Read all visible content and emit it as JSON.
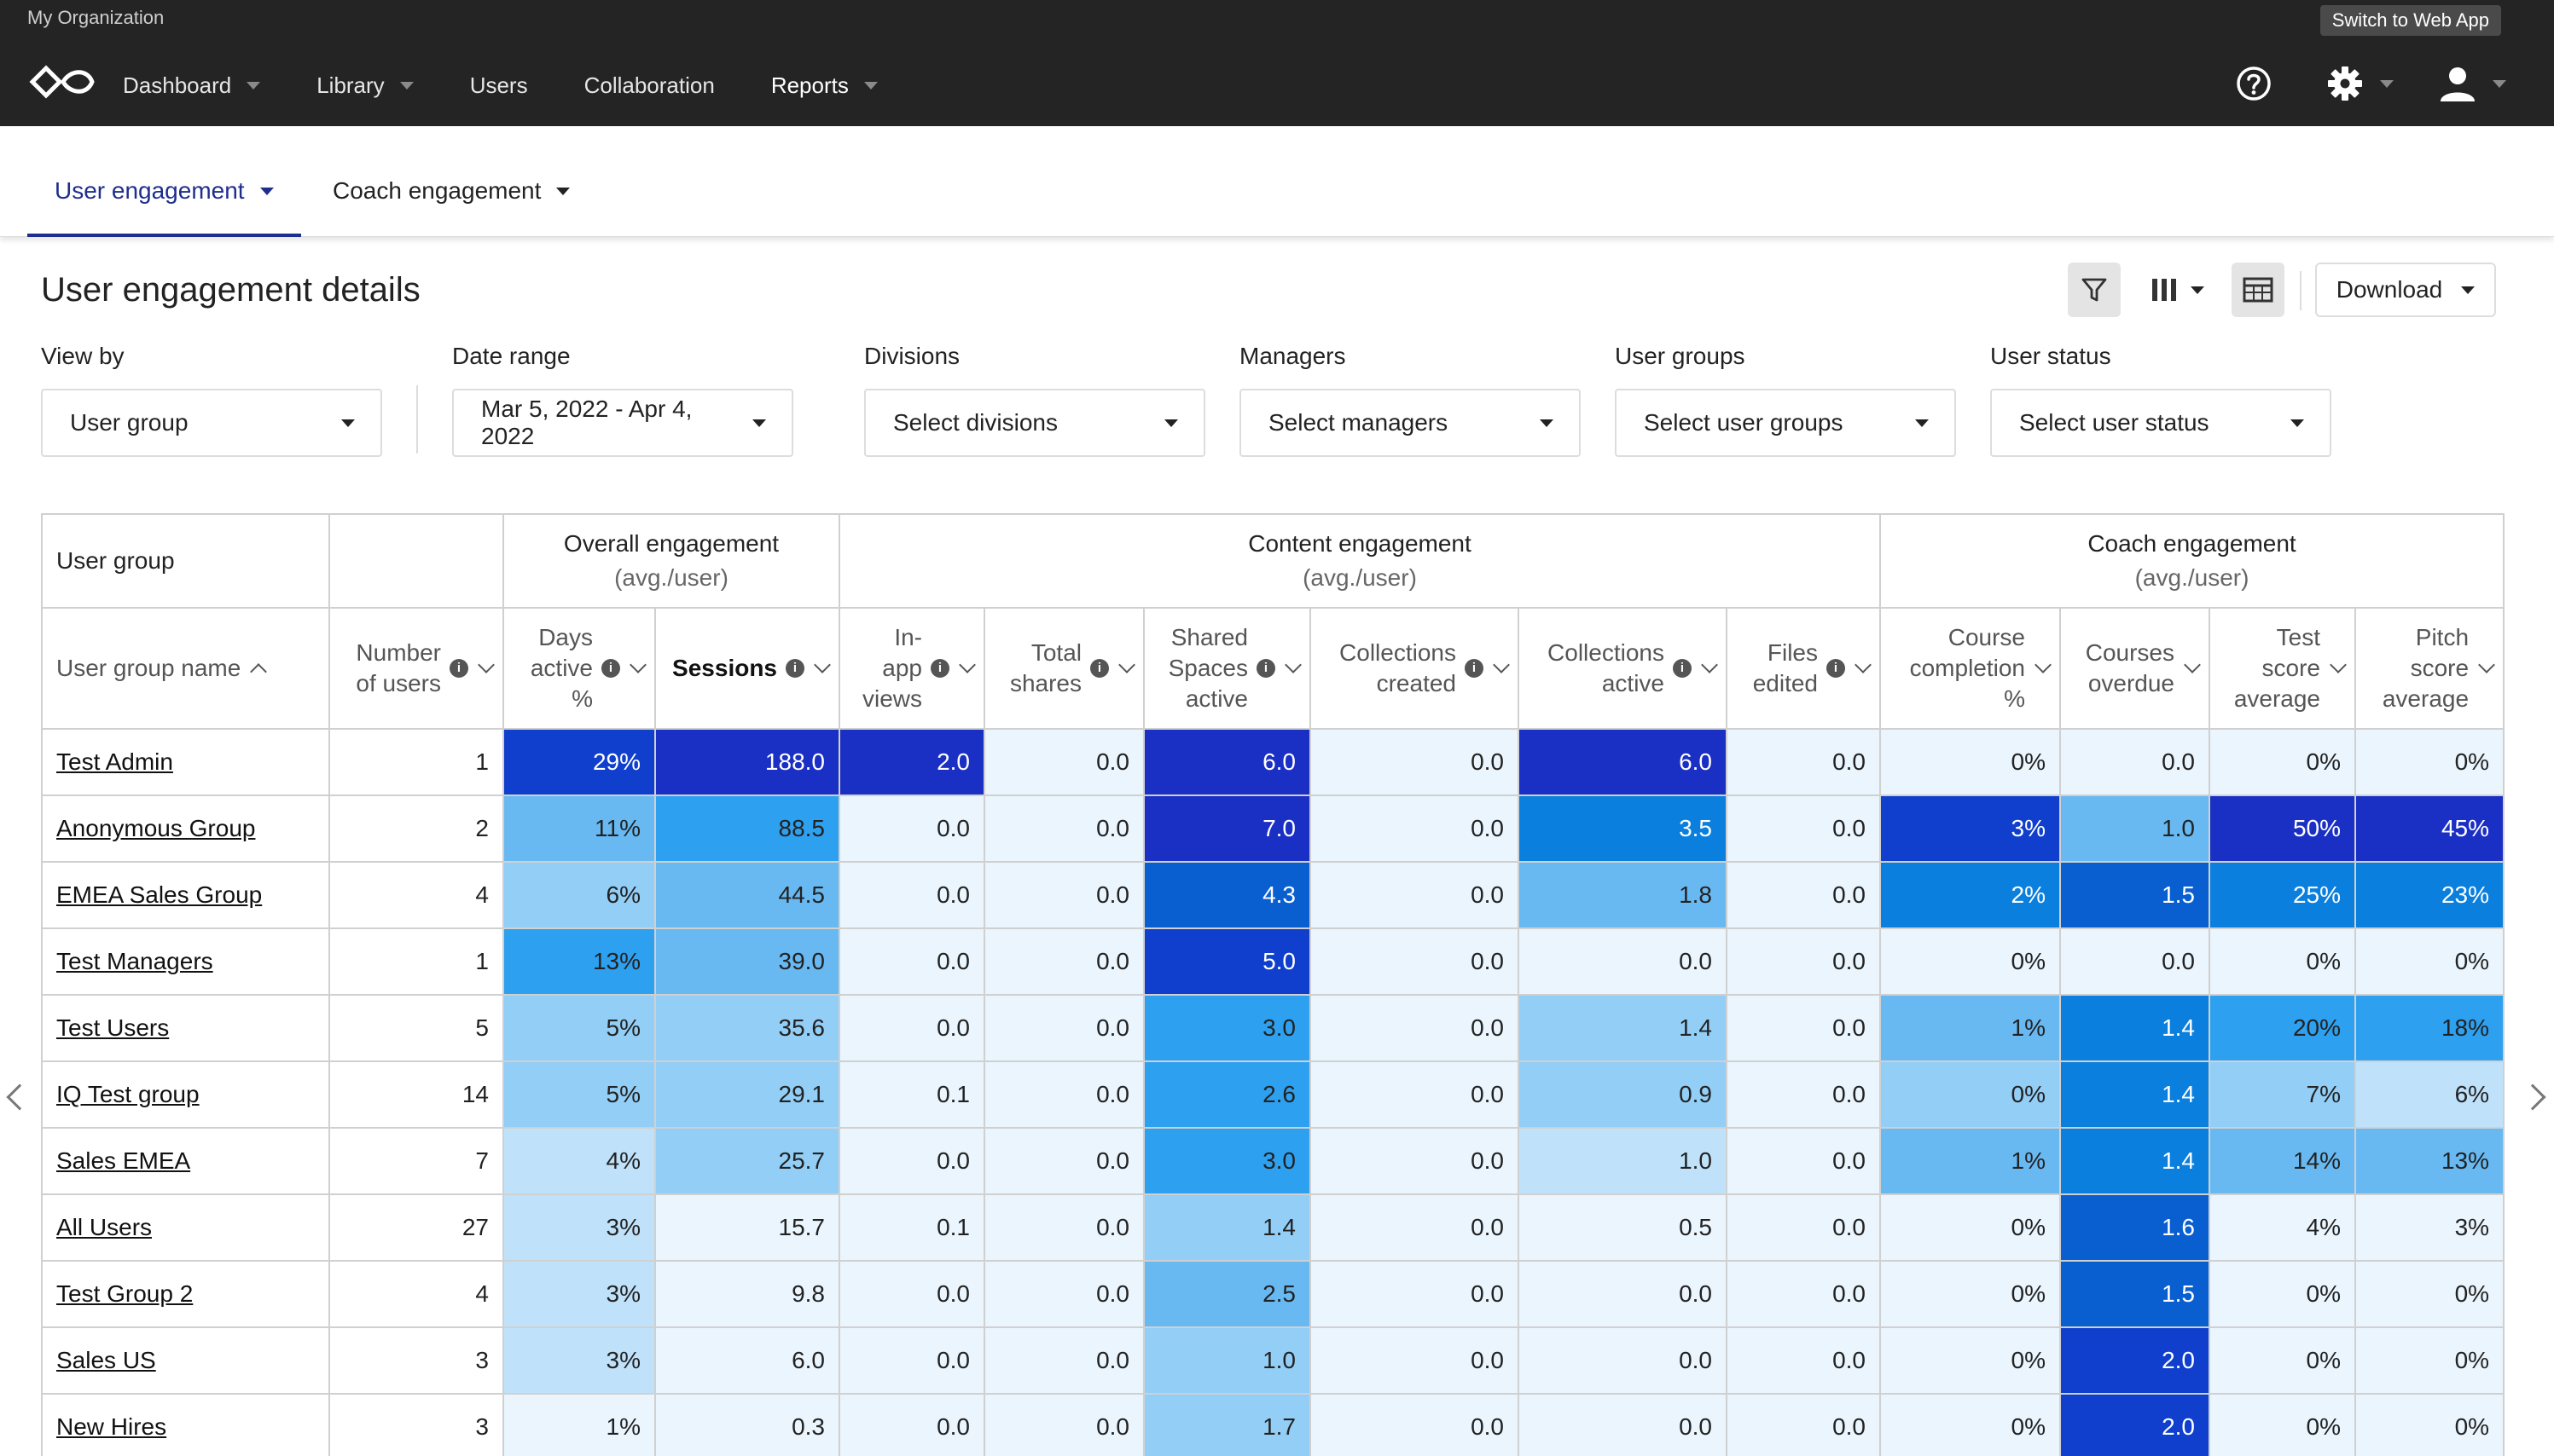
{
  "org_name": "My Organization",
  "switch_button": "Switch to Web App",
  "nav": [
    {
      "label": "Dashboard",
      "dropdown": true
    },
    {
      "label": "Library",
      "dropdown": true
    },
    {
      "label": "Users",
      "dropdown": false
    },
    {
      "label": "Collaboration",
      "dropdown": false
    },
    {
      "label": "Reports",
      "dropdown": true
    }
  ],
  "tabs": [
    "User engagement",
    "Coach engagement"
  ],
  "page_title": "User engagement details",
  "download_label": "Download",
  "filters": [
    {
      "label": "View by",
      "value": "User group"
    },
    {
      "label": "Date range",
      "value": "Mar 5, 2022 - Apr 4, 2022"
    },
    {
      "label": "Divisions",
      "value": "Select divisions"
    },
    {
      "label": "Managers",
      "value": "Select managers"
    },
    {
      "label": "User groups",
      "value": "Select user groups"
    },
    {
      "label": "User status",
      "value": "Select user status"
    }
  ],
  "table": {
    "groups": [
      {
        "title": "User group",
        "sub": ""
      },
      {
        "title": "",
        "sub": ""
      },
      {
        "title": "Overall engagement",
        "sub": "(avg./user)"
      },
      {
        "title": "Content engagement",
        "sub": "(avg./user)"
      },
      {
        "title": "Coach engagement",
        "sub": "(avg./user)"
      }
    ],
    "columns": [
      {
        "lines": [
          "User group name"
        ]
      },
      {
        "lines": [
          "Number",
          "of users"
        ]
      },
      {
        "lines": [
          "Days",
          "active",
          "%"
        ]
      },
      {
        "lines": [
          "Sessions"
        ]
      },
      {
        "lines": [
          "In-",
          "app",
          "views"
        ]
      },
      {
        "lines": [
          "Total",
          "shares"
        ]
      },
      {
        "lines": [
          "Shared",
          "Spaces",
          "active"
        ]
      },
      {
        "lines": [
          "Collections",
          "created"
        ]
      },
      {
        "lines": [
          "Collections",
          "active"
        ]
      },
      {
        "lines": [
          "Files",
          "edited"
        ]
      },
      {
        "lines": [
          "Course",
          "completion",
          "%"
        ]
      },
      {
        "lines": [
          "Courses",
          "overdue"
        ]
      },
      {
        "lines": [
          "Test",
          "score",
          "average"
        ]
      },
      {
        "lines": [
          "Pitch",
          "score",
          "average"
        ]
      }
    ],
    "info_glyph": "i",
    "rows": [
      {
        "name": "Test Admin",
        "cells": [
          "1",
          "29%",
          "188.0",
          "2.0",
          "0.0",
          "6.0",
          "0.0",
          "6.0",
          "0.0",
          "0%",
          "0.0",
          "0%",
          "0%"
        ]
      },
      {
        "name": "Anonymous Group",
        "cells": [
          "2",
          "11%",
          "88.5",
          "0.0",
          "0.0",
          "7.0",
          "0.0",
          "3.5",
          "0.0",
          "3%",
          "1.0",
          "50%",
          "45%"
        ]
      },
      {
        "name": "EMEA Sales Group",
        "cells": [
          "4",
          "6%",
          "44.5",
          "0.0",
          "0.0",
          "4.3",
          "0.0",
          "1.8",
          "0.0",
          "2%",
          "1.5",
          "25%",
          "23%"
        ]
      },
      {
        "name": "Test Managers",
        "cells": [
          "1",
          "13%",
          "39.0",
          "0.0",
          "0.0",
          "5.0",
          "0.0",
          "0.0",
          "0.0",
          "0%",
          "0.0",
          "0%",
          "0%"
        ]
      },
      {
        "name": "Test Users",
        "cells": [
          "5",
          "5%",
          "35.6",
          "0.0",
          "0.0",
          "3.0",
          "0.0",
          "1.4",
          "0.0",
          "1%",
          "1.4",
          "20%",
          "18%"
        ]
      },
      {
        "name": "IQ Test group",
        "cells": [
          "14",
          "5%",
          "29.1",
          "0.1",
          "0.0",
          "2.6",
          "0.0",
          "0.9",
          "0.0",
          "0%",
          "1.4",
          "7%",
          "6%"
        ]
      },
      {
        "name": "Sales EMEA",
        "cells": [
          "7",
          "4%",
          "25.7",
          "0.0",
          "0.0",
          "3.0",
          "0.0",
          "1.0",
          "0.0",
          "1%",
          "1.4",
          "14%",
          "13%"
        ]
      },
      {
        "name": "All Users",
        "cells": [
          "27",
          "3%",
          "15.7",
          "0.1",
          "0.0",
          "1.4",
          "0.0",
          "0.5",
          "0.0",
          "0%",
          "1.6",
          "4%",
          "3%"
        ]
      },
      {
        "name": "Test Group 2",
        "cells": [
          "4",
          "3%",
          "9.8",
          "0.0",
          "0.0",
          "2.5",
          "0.0",
          "0.0",
          "0.0",
          "0%",
          "1.5",
          "0%",
          "0%"
        ]
      },
      {
        "name": "Sales US",
        "cells": [
          "3",
          "3%",
          "6.0",
          "0.0",
          "0.0",
          "1.0",
          "0.0",
          "0.0",
          "0.0",
          "0%",
          "2.0",
          "0%",
          "0%"
        ]
      },
      {
        "name": "New Hires",
        "cells": [
          "3",
          "1%",
          "0.3",
          "0.0",
          "0.0",
          "1.7",
          "0.0",
          "0.0",
          "0.0",
          "0%",
          "2.0",
          "0%",
          "0%"
        ]
      }
    ],
    "heat_colors": {
      "0": "#eaf5fd",
      "1": "#bfe2fa",
      "2": "#93cef6",
      "3": "#68b9f2",
      "4": "#2ea0f0",
      "5": "#0a7fdd",
      "6": "#0a5fd0",
      "7": "#0f3fcc",
      "8": "#1a2fc4"
    },
    "heat_levels": [
      [
        null,
        7,
        8,
        8,
        0,
        8,
        0,
        8,
        0,
        0,
        0,
        0,
        0
      ],
      [
        null,
        3,
        4,
        0,
        0,
        8,
        0,
        5,
        0,
        7,
        3,
        8,
        8
      ],
      [
        null,
        2,
        3,
        0,
        0,
        6,
        0,
        3,
        0,
        5,
        6,
        5,
        5
      ],
      [
        null,
        4,
        3,
        0,
        0,
        7,
        0,
        0,
        0,
        0,
        0,
        0,
        0
      ],
      [
        null,
        2,
        2,
        0,
        0,
        4,
        0,
        2,
        0,
        3,
        5,
        4,
        4
      ],
      [
        null,
        2,
        2,
        0,
        0,
        4,
        0,
        2,
        0,
        2,
        5,
        2,
        1
      ],
      [
        null,
        1,
        2,
        0,
        0,
        4,
        0,
        1,
        0,
        3,
        5,
        3,
        3
      ],
      [
        null,
        1,
        0,
        0,
        0,
        2,
        0,
        0,
        0,
        0,
        6,
        0,
        0
      ],
      [
        null,
        1,
        0,
        0,
        0,
        3,
        0,
        0,
        0,
        0,
        6,
        0,
        0
      ],
      [
        null,
        1,
        0,
        0,
        0,
        2,
        0,
        0,
        0,
        0,
        7,
        0,
        0
      ],
      [
        null,
        0,
        0,
        0,
        0,
        2,
        0,
        0,
        0,
        0,
        7,
        0,
        0
      ]
    ]
  }
}
